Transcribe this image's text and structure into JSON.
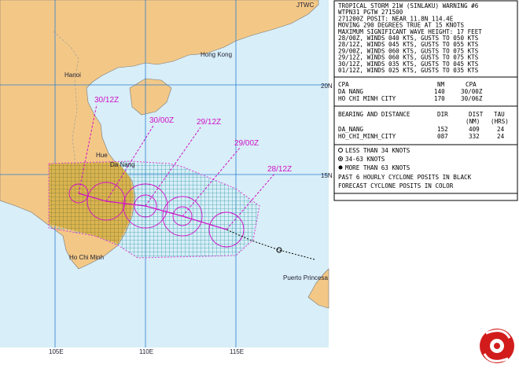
{
  "map": {
    "agency": "JTWC",
    "places": [
      "Hong Kong",
      "Hanoi",
      "Hue",
      "Da Nang",
      "Ho Chi Minh",
      "Puerto Princesa"
    ],
    "latitudes": [
      "20N",
      "15N"
    ],
    "longitudes": [
      "105E",
      "110E",
      "115E"
    ],
    "forecast_times": [
      "30/12Z",
      "30/00Z",
      "29/12Z",
      "29/00Z",
      "28/12Z"
    ]
  },
  "warning": {
    "lines": [
      "TROPICAL STORM 21W (SINLAKU) WARNING #6",
      "WTPN31 PGTW 271500",
      "271200Z POSIT: NEAR 11.8N 114.4E",
      "MOVING 290 DEGREES TRUE AT 15 KNOTS",
      "MAXIMUM SIGNIFICANT WAVE HEIGHT: 17 FEET",
      "28/00Z, WINDS 040 KTS, GUSTS TO 050 KTS",
      "28/12Z, WINDS 045 KTS, GUSTS TO 055 KTS",
      "29/00Z, WINDS 060 KTS, GUSTS TO 075 KTS",
      "29/12Z, WINDS 060 KTS, GUSTS TO 075 KTS",
      "30/12Z, WINDS 035 KTS, GUSTS TO 045 KTS",
      "01/12Z, WINDS 025 KTS, GUSTS TO 035 KTS"
    ],
    "cpa": {
      "header": [
        "CPA",
        "NM",
        "CPA"
      ],
      "rows": [
        [
          "DA NANG",
          "140",
          "30/00Z"
        ],
        [
          "HO CHI MINH CITY",
          "170",
          "30/06Z"
        ]
      ]
    },
    "bearing": {
      "header": [
        "BEARING AND DISTANCE",
        "DIR",
        "DIST",
        "TAU"
      ],
      "units": [
        "(NM)",
        "(HRS)"
      ],
      "rows": [
        [
          "DA_NANG",
          "152",
          "409",
          "24"
        ],
        [
          "HO_CHI_MINH_CITY",
          "087",
          "332",
          "24"
        ]
      ]
    }
  },
  "legend": [
    "LESS THAN 34 KNOTS",
    "34-63 KNOTS",
    "MORE THAN 63 KNOTS",
    "PAST 6 HOURLY CYCLONE POSITS IN BLACK",
    "FORECAST CYCLONE POSITS IN COLOR"
  ]
}
